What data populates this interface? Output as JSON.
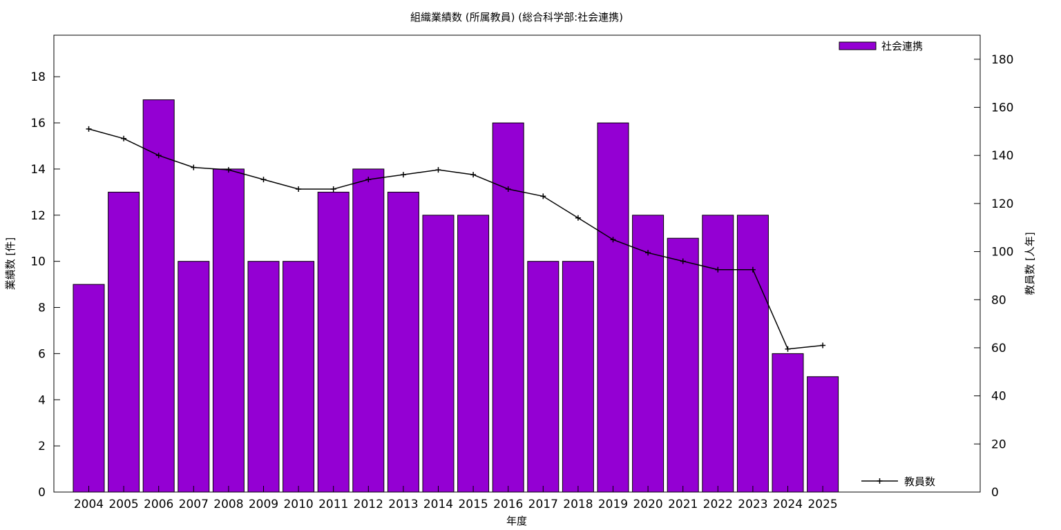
{
  "chart_data": {
    "type": "bar",
    "title": "組織業績数 (所属教員) (総合科学部:社会連携)",
    "xlabel": "年度",
    "ylabel": "業績数 [件]",
    "y2label": "教員数 [人年]",
    "categories": [
      "2004",
      "2005",
      "2006",
      "2007",
      "2008",
      "2009",
      "2010",
      "2011",
      "2012",
      "2013",
      "2014",
      "2015",
      "2016",
      "2017",
      "2018",
      "2019",
      "2020",
      "2021",
      "2022",
      "2023",
      "2024",
      "2025"
    ],
    "series": [
      {
        "name": "社会連携",
        "type": "bar",
        "axis": "left",
        "color": "#9400D3",
        "values": [
          9,
          13,
          17,
          10,
          14,
          10,
          10,
          13,
          14,
          13,
          12,
          12,
          16,
          10,
          10,
          16,
          12,
          11,
          12,
          12,
          6,
          5
        ]
      },
      {
        "name": "教員数",
        "type": "line",
        "axis": "right",
        "color": "#000000",
        "values": [
          151,
          147,
          140,
          135,
          134,
          130,
          126,
          126,
          130,
          132,
          134,
          132,
          126,
          123,
          114,
          105,
          99.5,
          96,
          92.5,
          92.5,
          59.5,
          61
        ]
      }
    ],
    "ylim": [
      0,
      19.8
    ],
    "y2lim": [
      0,
      190
    ],
    "yticks": [
      0,
      2,
      4,
      6,
      8,
      10,
      12,
      14,
      16,
      18
    ],
    "y2ticks": [
      0,
      20,
      40,
      60,
      80,
      100,
      120,
      140,
      160,
      180
    ],
    "grid": false,
    "legend": [
      "top-right",
      "bottom-right"
    ]
  }
}
